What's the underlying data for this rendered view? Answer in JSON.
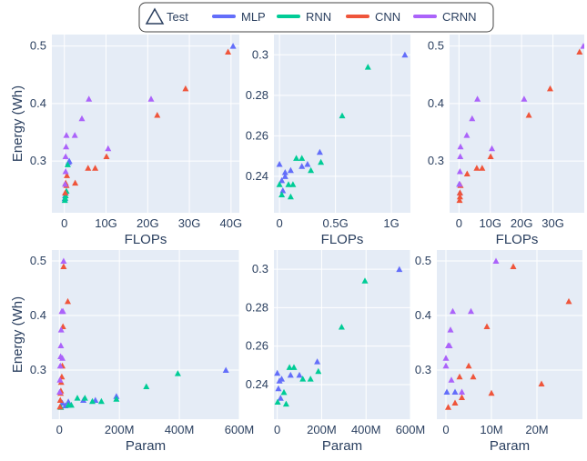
{
  "legend": {
    "items": [
      {
        "name": "Test",
        "kind": "marker"
      },
      {
        "name": "MLP",
        "color": "#636efa"
      },
      {
        "name": "RNN",
        "color": "#00cc96"
      },
      {
        "name": "CNN",
        "color": "#ef553b"
      },
      {
        "name": "CRNN",
        "color": "#ab63fa"
      }
    ]
  },
  "chart_data": [
    {
      "type": "scatter",
      "panel": "top-left",
      "xlabel": "FLOPs",
      "ylabel": "Energy (Wh)",
      "xlim": [
        -3,
        42
      ],
      "ylim": [
        0.21,
        0.52
      ],
      "xticks": [
        {
          "v": 0,
          "t": "0"
        },
        {
          "v": 10,
          "t": "10G"
        },
        {
          "v": 20,
          "t": "20G"
        },
        {
          "v": 30,
          "t": "30G"
        },
        {
          "v": 40,
          "t": "40G"
        }
      ],
      "yticks": [
        {
          "v": 0.3,
          "t": "0.3"
        },
        {
          "v": 0.4,
          "t": "0.4"
        },
        {
          "v": 0.5,
          "t": "0.5"
        }
      ],
      "series": [
        {
          "name": "MLP",
          "x": [
            0.1,
            0.2,
            0.3,
            1.2,
            1.0,
            40.5
          ],
          "y": [
            0.235,
            0.24,
            0.245,
            0.3,
            0.298,
            0.5
          ]
        },
        {
          "name": "RNN",
          "x": [
            0.1,
            0.2,
            0.3,
            0.5,
            0.8
          ],
          "y": [
            0.232,
            0.236,
            0.24,
            0.248,
            0.294
          ]
        },
        {
          "name": "CNN",
          "x": [
            0.2,
            0.5,
            0.3,
            0.6,
            2.6,
            5.7,
            7.4,
            10.1,
            22.3,
            29.1,
            39.3
          ],
          "y": [
            0.245,
            0.258,
            0.262,
            0.275,
            0.262,
            0.288,
            0.288,
            0.308,
            0.38,
            0.426,
            0.49
          ]
        },
        {
          "name": "CRNN",
          "x": [
            0.2,
            0.3,
            0.3,
            0.4,
            0.5,
            2.5,
            4.2,
            5.9,
            10.5,
            20.8
          ],
          "y": [
            0.26,
            0.282,
            0.308,
            0.325,
            0.345,
            0.345,
            0.374,
            0.408,
            0.322,
            0.408
          ]
        }
      ]
    },
    {
      "type": "scatter",
      "panel": "top-middle",
      "xlabel": "FLOPs",
      "ylabel": "",
      "xlim": [
        -0.05,
        1.17
      ],
      "ylim": [
        0.222,
        0.31
      ],
      "xticks": [
        {
          "v": 0,
          "t": "0"
        },
        {
          "v": 0.5,
          "t": "0.5G"
        },
        {
          "v": 1,
          "t": "1G"
        }
      ],
      "yticks": [
        {
          "v": 0.24,
          "t": "0.24"
        },
        {
          "v": 0.26,
          "t": "0.26"
        },
        {
          "v": 0.28,
          "t": "0.28"
        },
        {
          "v": 0.3,
          "t": "0.3"
        }
      ],
      "series": [
        {
          "name": "MLP",
          "x": [
            0.0,
            0.02,
            0.05,
            0.1,
            0.2,
            0.25,
            0.36,
            1.12,
            0.03,
            0.05
          ],
          "y": [
            0.246,
            0.238,
            0.242,
            0.243,
            0.245,
            0.246,
            0.252,
            0.3,
            0.233,
            0.24
          ]
        },
        {
          "name": "RNN",
          "x": [
            0.02,
            0.08,
            0.12,
            0.15,
            0.2,
            0.28,
            0.37,
            0.56,
            0.79,
            0.1,
            0.0
          ],
          "y": [
            0.231,
            0.236,
            0.236,
            0.249,
            0.249,
            0.243,
            0.247,
            0.27,
            0.294,
            0.23,
            0.236
          ]
        }
      ]
    },
    {
      "type": "scatter",
      "panel": "top-right",
      "xlabel": "FLOPs",
      "ylabel": "",
      "xlim": [
        -3,
        40
      ],
      "ylim": [
        0.21,
        0.52
      ],
      "xticks": [
        {
          "v": 0,
          "t": "0"
        },
        {
          "v": 10,
          "t": "10G"
        },
        {
          "v": 20,
          "t": "20G"
        },
        {
          "v": 30,
          "t": "30G"
        }
      ],
      "yticks": [
        {
          "v": 0.3,
          "t": "0.3"
        },
        {
          "v": 0.4,
          "t": "0.4"
        },
        {
          "v": 0.5,
          "t": "0.5"
        }
      ],
      "series": [
        {
          "name": "MLP",
          "x": [
            0.1,
            0.3
          ],
          "y": [
            0.26,
            0.245
          ]
        },
        {
          "name": "CNN",
          "x": [
            0.2,
            0.3,
            0.3,
            0.5,
            2.6,
            5.7,
            7.4,
            10.1,
            22.3,
            29.1,
            38.5
          ],
          "y": [
            0.232,
            0.238,
            0.245,
            0.258,
            0.278,
            0.288,
            0.288,
            0.308,
            0.38,
            0.426,
            0.49
          ]
        },
        {
          "name": "CRNN",
          "x": [
            0.2,
            0.3,
            0.4,
            0.5,
            2.5,
            4.2,
            5.9,
            10.5,
            20.8,
            39.7
          ],
          "y": [
            0.26,
            0.282,
            0.308,
            0.325,
            0.345,
            0.374,
            0.408,
            0.322,
            0.408,
            0.5
          ]
        }
      ]
    },
    {
      "type": "scatter",
      "panel": "bottom-left",
      "xlabel": "Param",
      "ylabel": "Energy (Wh)",
      "xlim": [
        -25,
        600
      ],
      "ylim": [
        0.21,
        0.52
      ],
      "xticks": [
        {
          "v": 0,
          "t": "0"
        },
        {
          "v": 200,
          "t": "200M"
        },
        {
          "v": 400,
          "t": "400M"
        },
        {
          "v": 600,
          "t": "600M"
        }
      ],
      "yticks": [
        {
          "v": 0.3,
          "t": "0.3"
        },
        {
          "v": 0.4,
          "t": "0.4"
        },
        {
          "v": 0.5,
          "t": "0.5"
        }
      ],
      "series": [
        {
          "name": "MLP",
          "x": [
            10,
            20,
            30,
            80,
            120,
            190,
            555
          ],
          "y": [
            0.24,
            0.235,
            0.242,
            0.245,
            0.245,
            0.252,
            0.3
          ]
        },
        {
          "name": "RNN",
          "x": [
            5,
            30,
            40,
            60,
            85,
            110,
            140,
            190,
            290,
            395
          ],
          "y": [
            0.232,
            0.236,
            0.236,
            0.249,
            0.249,
            0.243,
            0.243,
            0.247,
            0.27,
            0.294
          ]
        },
        {
          "name": "CNN",
          "x": [
            2,
            3,
            4,
            5,
            6,
            8,
            10,
            12,
            14,
            28
          ],
          "y": [
            0.233,
            0.245,
            0.258,
            0.262,
            0.278,
            0.288,
            0.308,
            0.38,
            0.49,
            0.426
          ]
        },
        {
          "name": "CRNN",
          "x": [
            1,
            2,
            3,
            4,
            5,
            6,
            8,
            10,
            12,
            14
          ],
          "y": [
            0.26,
            0.282,
            0.308,
            0.325,
            0.345,
            0.374,
            0.408,
            0.322,
            0.408,
            0.5
          ]
        }
      ]
    },
    {
      "type": "scatter",
      "panel": "bottom-middle",
      "xlabel": "Param",
      "ylabel": "",
      "xlim": [
        -15,
        600
      ],
      "ylim": [
        0.222,
        0.31
      ],
      "xticks": [
        {
          "v": 0,
          "t": "0"
        },
        {
          "v": 200,
          "t": "200M"
        },
        {
          "v": 400,
          "t": "400M"
        },
        {
          "v": 600,
          "t": "600M"
        }
      ],
      "yticks": [
        {
          "v": 0.24,
          "t": "0.24"
        },
        {
          "v": 0.26,
          "t": "0.26"
        },
        {
          "v": 0.28,
          "t": "0.28"
        },
        {
          "v": 0.3,
          "t": "0.3"
        }
      ],
      "series": [
        {
          "name": "MLP",
          "x": [
            0,
            5,
            10,
            20,
            60,
            100,
            180,
            550,
            15
          ],
          "y": [
            0.246,
            0.238,
            0.242,
            0.243,
            0.245,
            0.245,
            0.252,
            0.3,
            0.233
          ]
        },
        {
          "name": "RNN",
          "x": [
            2,
            30,
            40,
            55,
            75,
            115,
            150,
            185,
            290,
            395
          ],
          "y": [
            0.231,
            0.236,
            0.23,
            0.249,
            0.249,
            0.243,
            0.243,
            0.247,
            0.27,
            0.294
          ]
        }
      ]
    },
    {
      "type": "scatter",
      "panel": "bottom-right",
      "xlabel": "Param",
      "ylabel": "",
      "xlim": [
        -2,
        30
      ],
      "ylim": [
        0.21,
        0.52
      ],
      "xticks": [
        {
          "v": 0,
          "t": "0"
        },
        {
          "v": 10,
          "t": "10M"
        },
        {
          "v": 20,
          "t": "20M"
        }
      ],
      "yticks": [
        {
          "v": 0.3,
          "t": "0.3"
        },
        {
          "v": 0.4,
          "t": "0.4"
        },
        {
          "v": 0.5,
          "t": "0.5"
        }
      ],
      "series": [
        {
          "name": "MLP",
          "x": [
            0.2,
            2.0
          ],
          "y": [
            0.26,
            0.26
          ]
        },
        {
          "name": "CNN",
          "x": [
            0.5,
            2.0,
            3.0,
            3.5,
            5.0,
            6.0,
            9.0,
            10.0,
            14.8,
            21.0,
            27.0
          ],
          "y": [
            0.232,
            0.24,
            0.288,
            0.25,
            0.308,
            0.288,
            0.38,
            0.258,
            0.49,
            0.275,
            0.426
          ]
        },
        {
          "name": "CRNN",
          "x": [
            0.0,
            0.0,
            0.5,
            0.8,
            1.0,
            1.2,
            1.5,
            5.5,
            3.5,
            11.0
          ],
          "y": [
            0.322,
            0.308,
            0.345,
            0.345,
            0.374,
            0.282,
            0.408,
            0.408,
            0.26,
            0.5
          ]
        }
      ]
    }
  ]
}
